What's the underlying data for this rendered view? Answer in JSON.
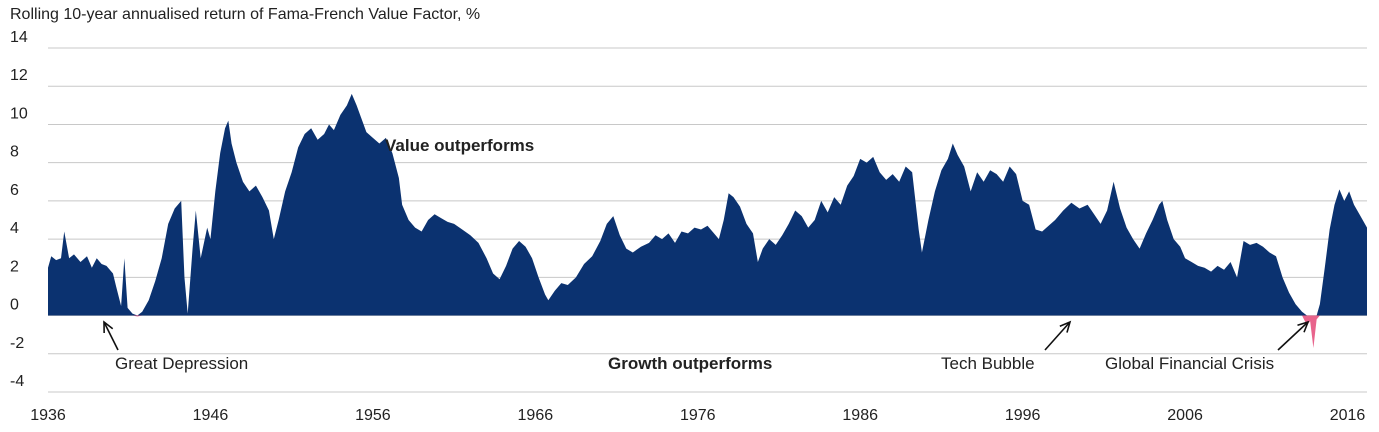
{
  "chart_data": {
    "type": "area",
    "title": "Rolling 10-year annualised return of Fama-French Value Factor, %",
    "xlabel": "",
    "ylabel": "",
    "xlim": [
      1936,
      2017.2
    ],
    "ylim": [
      -4,
      14
    ],
    "y_ticks": [
      14,
      12,
      10,
      8,
      6,
      4,
      2,
      0,
      -2,
      -4
    ],
    "x_ticks": [
      1936,
      1946,
      1956,
      1966,
      1976,
      1986,
      1996,
      2006,
      2016
    ],
    "grid": true,
    "colors": {
      "positive": "#0b3270",
      "negative": "#e8648c",
      "grid": "#c8c8c8",
      "arrow": "#111111"
    },
    "series": [
      {
        "values": [
          [
            1936.0,
            2.5
          ],
          [
            1936.2,
            3.1
          ],
          [
            1936.5,
            2.9
          ],
          [
            1936.8,
            3.0
          ],
          [
            1937.0,
            4.4
          ],
          [
            1937.3,
            3.0
          ],
          [
            1937.6,
            3.2
          ],
          [
            1938.0,
            2.8
          ],
          [
            1938.4,
            3.1
          ],
          [
            1938.7,
            2.5
          ],
          [
            1939.0,
            3.0
          ],
          [
            1939.3,
            2.7
          ],
          [
            1939.6,
            2.6
          ],
          [
            1940.0,
            2.2
          ],
          [
            1940.2,
            1.5
          ],
          [
            1940.5,
            0.5
          ],
          [
            1940.7,
            3.0
          ],
          [
            1940.9,
            0.4
          ],
          [
            1941.2,
            0.1
          ],
          [
            1941.5,
            -0.05
          ],
          [
            1941.8,
            0.2
          ],
          [
            1942.2,
            0.8
          ],
          [
            1942.6,
            1.8
          ],
          [
            1943.0,
            3.0
          ],
          [
            1943.4,
            4.8
          ],
          [
            1943.8,
            5.6
          ],
          [
            1944.2,
            6.0
          ],
          [
            1944.4,
            2.0
          ],
          [
            1944.6,
            0.1
          ],
          [
            1944.9,
            3.5
          ],
          [
            1945.1,
            5.5
          ],
          [
            1945.4,
            3.0
          ],
          [
            1945.8,
            4.6
          ],
          [
            1946.0,
            4.0
          ],
          [
            1946.3,
            6.5
          ],
          [
            1946.6,
            8.5
          ],
          [
            1946.9,
            9.8
          ],
          [
            1947.1,
            10.2
          ],
          [
            1947.3,
            9.0
          ],
          [
            1947.6,
            8.0
          ],
          [
            1948.0,
            7.0
          ],
          [
            1948.4,
            6.5
          ],
          [
            1948.8,
            6.8
          ],
          [
            1949.2,
            6.2
          ],
          [
            1949.6,
            5.5
          ],
          [
            1949.9,
            4.0
          ],
          [
            1950.2,
            5.0
          ],
          [
            1950.6,
            6.5
          ],
          [
            1951.0,
            7.5
          ],
          [
            1951.4,
            8.8
          ],
          [
            1951.8,
            9.5
          ],
          [
            1952.2,
            9.8
          ],
          [
            1952.6,
            9.2
          ],
          [
            1953.0,
            9.5
          ],
          [
            1953.3,
            10.0
          ],
          [
            1953.6,
            9.7
          ],
          [
            1954.0,
            10.5
          ],
          [
            1954.4,
            11.0
          ],
          [
            1954.7,
            11.6
          ],
          [
            1955.0,
            11.0
          ],
          [
            1955.3,
            10.3
          ],
          [
            1955.6,
            9.6
          ],
          [
            1956.0,
            9.3
          ],
          [
            1956.4,
            9.0
          ],
          [
            1956.8,
            9.3
          ],
          [
            1957.2,
            8.5
          ],
          [
            1957.6,
            7.2
          ],
          [
            1957.8,
            5.8
          ],
          [
            1958.2,
            5.0
          ],
          [
            1958.6,
            4.6
          ],
          [
            1959.0,
            4.4
          ],
          [
            1959.4,
            5.0
          ],
          [
            1959.8,
            5.3
          ],
          [
            1960.2,
            5.1
          ],
          [
            1960.6,
            4.9
          ],
          [
            1961.0,
            4.8
          ],
          [
            1961.5,
            4.5
          ],
          [
            1962.0,
            4.2
          ],
          [
            1962.5,
            3.8
          ],
          [
            1963.0,
            3.0
          ],
          [
            1963.4,
            2.2
          ],
          [
            1963.8,
            1.9
          ],
          [
            1964.2,
            2.6
          ],
          [
            1964.6,
            3.5
          ],
          [
            1965.0,
            3.9
          ],
          [
            1965.4,
            3.6
          ],
          [
            1965.8,
            3.0
          ],
          [
            1966.2,
            2.0
          ],
          [
            1966.6,
            1.1
          ],
          [
            1966.8,
            0.8
          ],
          [
            1967.2,
            1.3
          ],
          [
            1967.6,
            1.7
          ],
          [
            1968.0,
            1.6
          ],
          [
            1968.5,
            2.0
          ],
          [
            1969.0,
            2.7
          ],
          [
            1969.5,
            3.1
          ],
          [
            1970.0,
            3.9
          ],
          [
            1970.4,
            4.8
          ],
          [
            1970.8,
            5.2
          ],
          [
            1971.2,
            4.2
          ],
          [
            1971.6,
            3.5
          ],
          [
            1972.0,
            3.3
          ],
          [
            1972.5,
            3.6
          ],
          [
            1973.0,
            3.8
          ],
          [
            1973.4,
            4.2
          ],
          [
            1973.8,
            4.0
          ],
          [
            1974.2,
            4.3
          ],
          [
            1974.6,
            3.8
          ],
          [
            1975.0,
            4.4
          ],
          [
            1975.4,
            4.3
          ],
          [
            1975.8,
            4.6
          ],
          [
            1976.2,
            4.5
          ],
          [
            1976.6,
            4.7
          ],
          [
            1977.0,
            4.3
          ],
          [
            1977.3,
            4.0
          ],
          [
            1977.6,
            5.0
          ],
          [
            1977.9,
            6.4
          ],
          [
            1978.2,
            6.2
          ],
          [
            1978.6,
            5.7
          ],
          [
            1979.0,
            4.8
          ],
          [
            1979.4,
            4.3
          ],
          [
            1979.7,
            2.8
          ],
          [
            1980.0,
            3.5
          ],
          [
            1980.4,
            4.0
          ],
          [
            1980.8,
            3.7
          ],
          [
            1981.2,
            4.2
          ],
          [
            1981.6,
            4.8
          ],
          [
            1982.0,
            5.5
          ],
          [
            1982.4,
            5.2
          ],
          [
            1982.8,
            4.6
          ],
          [
            1983.2,
            5.0
          ],
          [
            1983.6,
            6.0
          ],
          [
            1984.0,
            5.4
          ],
          [
            1984.4,
            6.2
          ],
          [
            1984.8,
            5.8
          ],
          [
            1985.2,
            6.8
          ],
          [
            1985.6,
            7.3
          ],
          [
            1986.0,
            8.2
          ],
          [
            1986.4,
            8.0
          ],
          [
            1986.8,
            8.3
          ],
          [
            1987.2,
            7.5
          ],
          [
            1987.6,
            7.1
          ],
          [
            1988.0,
            7.4
          ],
          [
            1988.4,
            7.0
          ],
          [
            1988.8,
            7.8
          ],
          [
            1989.2,
            7.5
          ],
          [
            1989.6,
            4.5
          ],
          [
            1989.8,
            3.3
          ],
          [
            1990.2,
            5.0
          ],
          [
            1990.6,
            6.5
          ],
          [
            1991.0,
            7.6
          ],
          [
            1991.4,
            8.2
          ],
          [
            1991.7,
            9.0
          ],
          [
            1992.0,
            8.4
          ],
          [
            1992.4,
            7.8
          ],
          [
            1992.8,
            6.5
          ],
          [
            1993.2,
            7.5
          ],
          [
            1993.6,
            7.0
          ],
          [
            1994.0,
            7.6
          ],
          [
            1994.4,
            7.4
          ],
          [
            1994.8,
            7.0
          ],
          [
            1995.2,
            7.8
          ],
          [
            1995.6,
            7.4
          ],
          [
            1996.0,
            6.0
          ],
          [
            1996.4,
            5.8
          ],
          [
            1996.8,
            4.5
          ],
          [
            1997.2,
            4.4
          ],
          [
            1997.6,
            4.7
          ],
          [
            1998.0,
            5.0
          ],
          [
            1998.5,
            5.5
          ],
          [
            1999.0,
            5.9
          ],
          [
            1999.5,
            5.6
          ],
          [
            2000.0,
            5.8
          ],
          [
            2000.4,
            5.3
          ],
          [
            2000.8,
            4.8
          ],
          [
            2001.2,
            5.5
          ],
          [
            2001.6,
            7.0
          ],
          [
            2002.0,
            5.6
          ],
          [
            2002.4,
            4.6
          ],
          [
            2002.8,
            4.0
          ],
          [
            2003.2,
            3.5
          ],
          [
            2003.6,
            4.3
          ],
          [
            2004.0,
            5.0
          ],
          [
            2004.4,
            5.8
          ],
          [
            2004.6,
            6.0
          ],
          [
            2004.9,
            5.0
          ],
          [
            2005.3,
            4.0
          ],
          [
            2005.7,
            3.6
          ],
          [
            2006.0,
            3.0
          ],
          [
            2006.4,
            2.8
          ],
          [
            2006.8,
            2.6
          ],
          [
            2007.2,
            2.5
          ],
          [
            2007.6,
            2.3
          ],
          [
            2008.0,
            2.6
          ],
          [
            2008.4,
            2.4
          ],
          [
            2008.8,
            2.8
          ],
          [
            2009.2,
            2.0
          ],
          [
            2009.6,
            3.9
          ],
          [
            2010.0,
            3.7
          ],
          [
            2010.4,
            3.8
          ],
          [
            2010.8,
            3.6
          ],
          [
            2011.2,
            3.3
          ],
          [
            2011.6,
            3.1
          ],
          [
            2012.0,
            2.0
          ],
          [
            2012.4,
            1.2
          ],
          [
            2012.8,
            0.6
          ],
          [
            2013.2,
            0.2
          ],
          [
            2013.5,
            -0.5
          ],
          [
            2013.7,
            -0.3
          ],
          [
            2013.9,
            -1.7
          ],
          [
            2014.1,
            -0.2
          ],
          [
            2014.3,
            0.6
          ],
          [
            2014.6,
            2.5
          ],
          [
            2014.9,
            4.5
          ],
          [
            2015.2,
            5.8
          ],
          [
            2015.5,
            6.6
          ],
          [
            2015.8,
            6.0
          ],
          [
            2016.1,
            6.5
          ],
          [
            2016.4,
            5.8
          ],
          [
            2016.8,
            5.2
          ],
          [
            2017.2,
            4.6
          ]
        ]
      }
    ],
    "annotations": [
      {
        "text": "Value outperforms",
        "style": "bold"
      },
      {
        "text": "Growth outperforms",
        "style": "bold"
      },
      {
        "text": "Great Depression",
        "style": "normal"
      },
      {
        "text": "Tech Bubble",
        "style": "normal"
      },
      {
        "text": "Global Financial Crisis",
        "style": "normal"
      }
    ]
  }
}
